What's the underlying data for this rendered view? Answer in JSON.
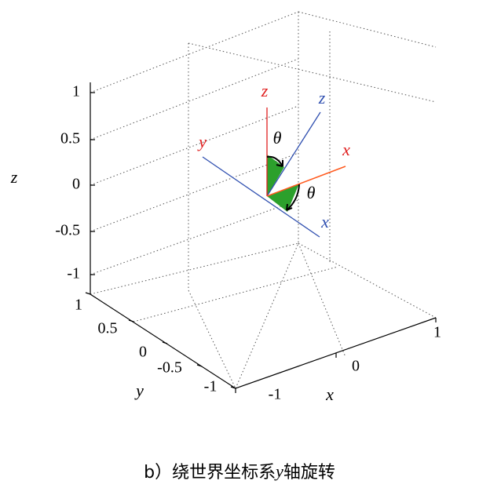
{
  "axes": {
    "z_label": "z",
    "y_label": "y",
    "x_label": "x",
    "z_ticks": [
      "1",
      "0.5",
      "0",
      "-0.5",
      "-1"
    ],
    "y_ticks": [
      "1",
      "0.5",
      "0",
      "-0.5",
      "-1"
    ],
    "x_ticks": [
      "-1",
      "0",
      "1"
    ]
  },
  "vectors": {
    "world": {
      "x": "x",
      "y": "y",
      "z": "z"
    },
    "rotated": {
      "x": "x",
      "z": "z"
    },
    "angle_labels": [
      "θ",
      "θ"
    ]
  },
  "caption": {
    "prefix": "b）绕世界坐标系",
    "axis": "y",
    "suffix": "轴旋转"
  }
}
